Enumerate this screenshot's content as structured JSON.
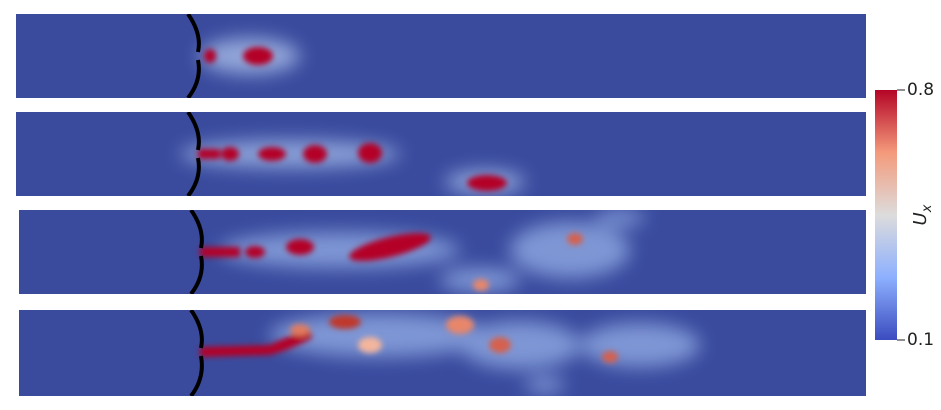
{
  "colorbar": {
    "label": "U",
    "label_sub": "x",
    "ticks": [
      0.8,
      0.1
    ]
  }
}
